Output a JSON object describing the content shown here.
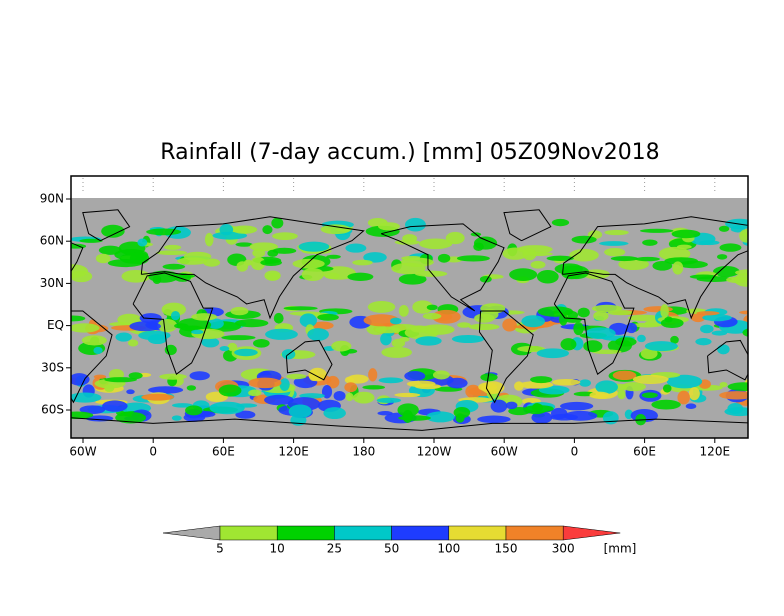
{
  "title": "Rainfall (7-day accum.) [mm] 05Z09Nov2018",
  "lat_labels": [
    "90N",
    "60N",
    "30N",
    "EQ",
    "30S",
    "60S"
  ],
  "lon_labels": [
    "60W",
    "0",
    "60E",
    "120E",
    "180",
    "120W",
    "60W",
    "0",
    "60E",
    "120E"
  ],
  "colorbar": {
    "levels": [
      5,
      10,
      25,
      50,
      100,
      150,
      300
    ],
    "unit": "[mm]",
    "colors": [
      "#aaaaaa",
      "#a0e632",
      "#00d200",
      "#00c8c8",
      "#1e3cff",
      "#e6dc32",
      "#f08228",
      "#fa3c3c"
    ]
  }
}
